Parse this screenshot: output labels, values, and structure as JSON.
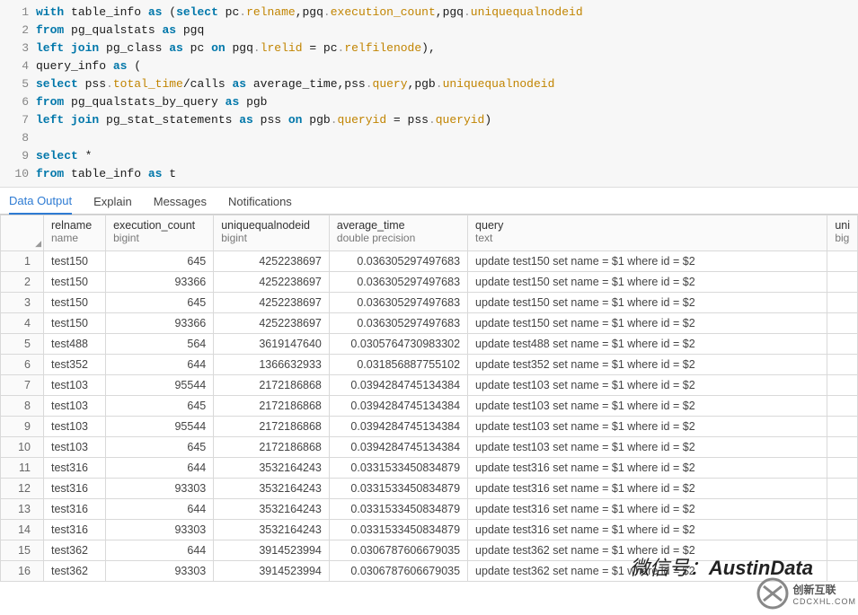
{
  "colors": {
    "keyword": "#0077aa",
    "attr": "#c18401",
    "tab_active": "#2e7bd3",
    "gutter": "#868686",
    "border": "#d9d9d9",
    "bg_editor": "#f7f7f7"
  },
  "editor": {
    "lines": [
      {
        "n": 1,
        "tokens": [
          [
            "kw",
            "with"
          ],
          [
            "id",
            " table_info "
          ],
          [
            "kw",
            "as"
          ],
          [
            "id",
            " ("
          ],
          [
            "kw",
            "select"
          ],
          [
            "id",
            " pc"
          ],
          [
            "dot",
            "."
          ],
          [
            "attr",
            "relname"
          ],
          [
            "id",
            ",pgq"
          ],
          [
            "dot",
            "."
          ],
          [
            "attr",
            "execution_count"
          ],
          [
            "id",
            ",pgq"
          ],
          [
            "dot",
            "."
          ],
          [
            "attr",
            "uniquequalnodeid"
          ]
        ]
      },
      {
        "n": 2,
        "tokens": [
          [
            "kw",
            "from"
          ],
          [
            "id",
            " pg_qualstats "
          ],
          [
            "kw",
            "as"
          ],
          [
            "id",
            " pgq"
          ]
        ]
      },
      {
        "n": 3,
        "tokens": [
          [
            "kw",
            "left join"
          ],
          [
            "id",
            " pg_class "
          ],
          [
            "kw",
            "as"
          ],
          [
            "id",
            " pc "
          ],
          [
            "kw",
            "on"
          ],
          [
            "id",
            " pgq"
          ],
          [
            "dot",
            "."
          ],
          [
            "attr",
            "lrelid"
          ],
          [
            "id",
            " = pc"
          ],
          [
            "dot",
            "."
          ],
          [
            "attr",
            "relfilenode"
          ],
          [
            "id",
            ")"
          ],
          [
            "id",
            ","
          ]
        ]
      },
      {
        "n": 4,
        "tokens": [
          [
            "id",
            "query_info "
          ],
          [
            "kw",
            "as"
          ],
          [
            "id",
            " ("
          ]
        ]
      },
      {
        "n": 5,
        "tokens": [
          [
            "kw",
            "select"
          ],
          [
            "id",
            " pss"
          ],
          [
            "dot",
            "."
          ],
          [
            "attr",
            "total_time"
          ],
          [
            "id",
            "/calls "
          ],
          [
            "kw",
            "as"
          ],
          [
            "id",
            " average_time,pss"
          ],
          [
            "dot",
            "."
          ],
          [
            "attr",
            "query"
          ],
          [
            "id",
            ",pgb"
          ],
          [
            "dot",
            "."
          ],
          [
            "attr",
            "uniquequalnodeid"
          ]
        ]
      },
      {
        "n": 6,
        "tokens": [
          [
            "kw",
            "from"
          ],
          [
            "id",
            " pg_qualstats_by_query "
          ],
          [
            "kw",
            "as"
          ],
          [
            "id",
            " pgb"
          ]
        ]
      },
      {
        "n": 7,
        "tokens": [
          [
            "kw",
            "left join"
          ],
          [
            "id",
            " pg_stat_statements "
          ],
          [
            "kw",
            "as"
          ],
          [
            "id",
            " pss "
          ],
          [
            "kw",
            "on"
          ],
          [
            "id",
            " pgb"
          ],
          [
            "dot",
            "."
          ],
          [
            "attr",
            "queryid"
          ],
          [
            "id",
            " = pss"
          ],
          [
            "dot",
            "."
          ],
          [
            "attr",
            "queryid"
          ],
          [
            "id",
            ")"
          ]
        ]
      },
      {
        "n": 8,
        "tokens": [
          [
            "id",
            ""
          ]
        ]
      },
      {
        "n": 9,
        "tokens": [
          [
            "kw",
            "select"
          ],
          [
            "id",
            " *"
          ]
        ]
      },
      {
        "n": 10,
        "tokens": [
          [
            "kw",
            "from"
          ],
          [
            "id",
            " table_info "
          ],
          [
            "kw",
            "as"
          ],
          [
            "id",
            " t"
          ]
        ]
      }
    ]
  },
  "tabs": {
    "items": [
      "Data Output",
      "Explain",
      "Messages",
      "Notifications"
    ],
    "active": 0
  },
  "grid": {
    "columns": [
      {
        "name": "relname",
        "type": "name",
        "align": "left"
      },
      {
        "name": "execution_count",
        "type": "bigint",
        "align": "right"
      },
      {
        "name": "uniquequalnodeid",
        "type": "bigint",
        "align": "right"
      },
      {
        "name": "average_time",
        "type": "double precision",
        "align": "right"
      },
      {
        "name": "query",
        "type": "text",
        "align": "left"
      },
      {
        "name": "uni",
        "type": "big",
        "align": "left",
        "truncated": true
      }
    ],
    "rows": [
      [
        1,
        "test150",
        645,
        4252238697,
        "0.036305297497683",
        "update test150 set name = $1 where id = $2"
      ],
      [
        2,
        "test150",
        93366,
        4252238697,
        "0.036305297497683",
        "update test150 set name = $1 where id = $2"
      ],
      [
        3,
        "test150",
        645,
        4252238697,
        "0.036305297497683",
        "update test150 set name = $1 where id = $2"
      ],
      [
        4,
        "test150",
        93366,
        4252238697,
        "0.036305297497683",
        "update test150 set name = $1 where id = $2"
      ],
      [
        5,
        "test488",
        564,
        3619147640,
        "0.0305764730983302",
        "update test488 set name = $1 where id = $2"
      ],
      [
        6,
        "test352",
        644,
        1366632933,
        "0.031856887755102",
        "update test352 set name = $1 where id = $2"
      ],
      [
        7,
        "test103",
        95544,
        2172186868,
        "0.0394284745134384",
        "update test103 set name = $1 where id = $2"
      ],
      [
        8,
        "test103",
        645,
        2172186868,
        "0.0394284745134384",
        "update test103 set name = $1 where id = $2"
      ],
      [
        9,
        "test103",
        95544,
        2172186868,
        "0.0394284745134384",
        "update test103 set name = $1 where id = $2"
      ],
      [
        10,
        "test103",
        645,
        2172186868,
        "0.0394284745134384",
        "update test103 set name = $1 where id = $2"
      ],
      [
        11,
        "test316",
        644,
        3532164243,
        "0.0331533450834879",
        "update test316 set name = $1 where id = $2"
      ],
      [
        12,
        "test316",
        93303,
        3532164243,
        "0.0331533450834879",
        "update test316 set name = $1 where id = $2"
      ],
      [
        13,
        "test316",
        644,
        3532164243,
        "0.0331533450834879",
        "update test316 set name = $1 where id = $2"
      ],
      [
        14,
        "test316",
        93303,
        3532164243,
        "0.0331533450834879",
        "update test316 set name = $1 where id = $2"
      ],
      [
        15,
        "test362",
        644,
        3914523994,
        "0.0306787606679035",
        "update test362 set name = $1 where id = $2"
      ],
      [
        16,
        "test362",
        93303,
        3914523994,
        "0.0306787606679035",
        "update test362 set name = $1 where id = $2"
      ]
    ]
  },
  "watermark": {
    "line1_prefix": "微信号：",
    "line1_main": "AustinData",
    "line2_brand": "创新互联",
    "line2_sub": "CDCXHL.COM"
  }
}
